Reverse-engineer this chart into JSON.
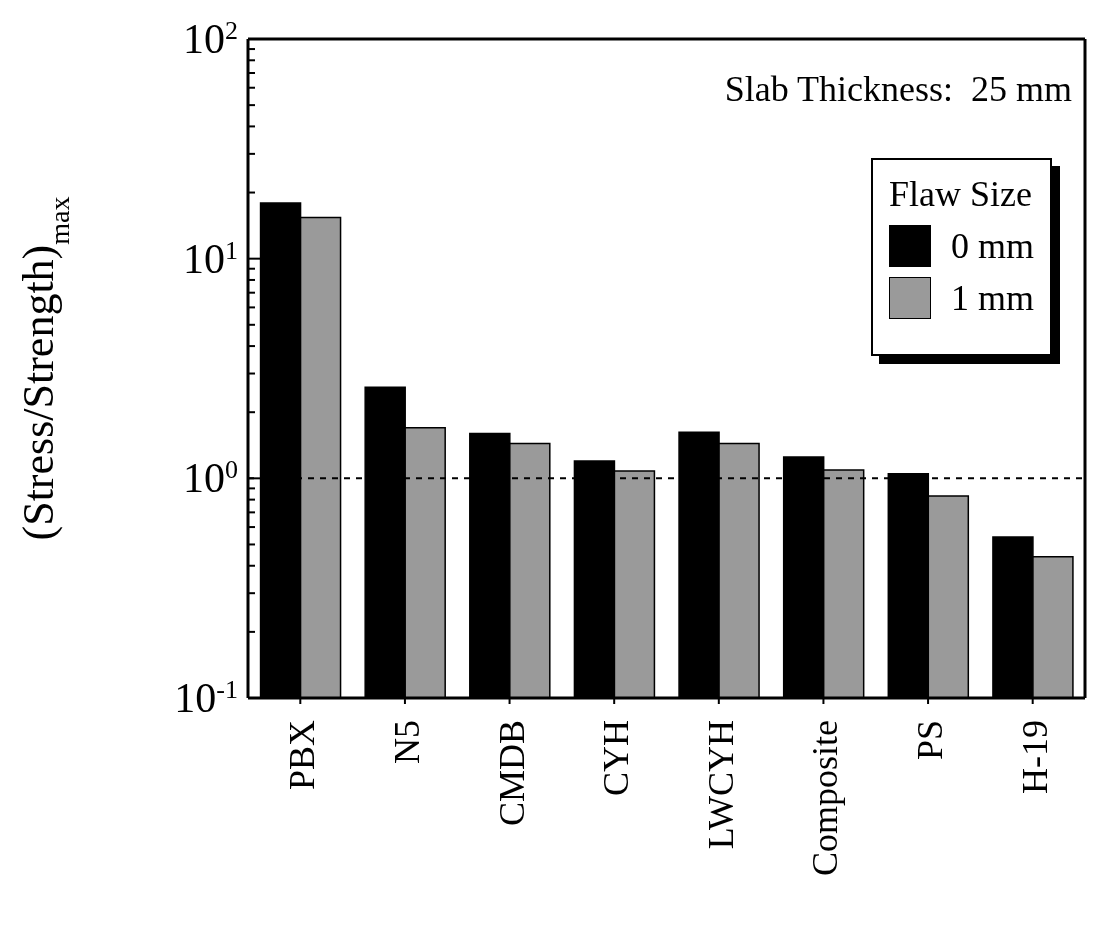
{
  "chart_data": {
    "type": "bar",
    "ylabel": "(Stress/Strength)$_{max}$",
    "legend_title": "Flaw Size",
    "annotations": [
      "Slab Thickness:  25 mm"
    ],
    "categories": [
      "PBX",
      "N5",
      "CMDB",
      "CYH",
      "LWCYH",
      "Composite",
      "PS",
      "H-19"
    ],
    "series": [
      {
        "name": "0 mm",
        "color": "#000000",
        "values": [
          17.9,
          2.6,
          1.6,
          1.2,
          1.62,
          1.25,
          1.05,
          0.54
        ]
      },
      {
        "name": "1 mm",
        "color": "#9a9a9a",
        "values": [
          15.4,
          1.7,
          1.44,
          1.08,
          1.44,
          1.09,
          0.83,
          0.44
        ]
      }
    ],
    "log": true,
    "ylim": [
      0.1,
      100
    ],
    "yticks": [
      {
        "value": 0.1,
        "label": "10$^{-1}$"
      },
      {
        "value": 0.2,
        "label": null
      },
      {
        "value": 0.3,
        "label": null
      },
      {
        "value": 0.4,
        "label": null
      },
      {
        "value": 0.5,
        "label": null
      },
      {
        "value": 0.6,
        "label": null
      },
      {
        "value": 0.7,
        "label": null
      },
      {
        "value": 0.8,
        "label": null
      },
      {
        "value": 0.9,
        "label": null
      },
      {
        "value": 1,
        "label": "10$^{0}$"
      },
      {
        "value": 2,
        "label": null
      },
      {
        "value": 3,
        "label": null
      },
      {
        "value": 4,
        "label": null
      },
      {
        "value": 5,
        "label": null
      },
      {
        "value": 6,
        "label": null
      },
      {
        "value": 7,
        "label": null
      },
      {
        "value": 8,
        "label": null
      },
      {
        "value": 9,
        "label": null
      },
      {
        "value": 10,
        "label": "10$^{1}$"
      },
      {
        "value": 20,
        "label": null
      },
      {
        "value": 30,
        "label": null
      },
      {
        "value": 40,
        "label": null
      },
      {
        "value": 50,
        "label": null
      },
      {
        "value": 60,
        "label": null
      },
      {
        "value": 70,
        "label": null
      },
      {
        "value": 80,
        "label": null
      },
      {
        "value": 90,
        "label": null
      },
      {
        "value": 100,
        "label": "10$^{2}$"
      }
    ],
    "ref_lines": [
      {
        "axis": "y",
        "value": 1,
        "line_style": "dashed",
        "color": "#000000"
      }
    ],
    "legend": "top right",
    "grid": false
  }
}
